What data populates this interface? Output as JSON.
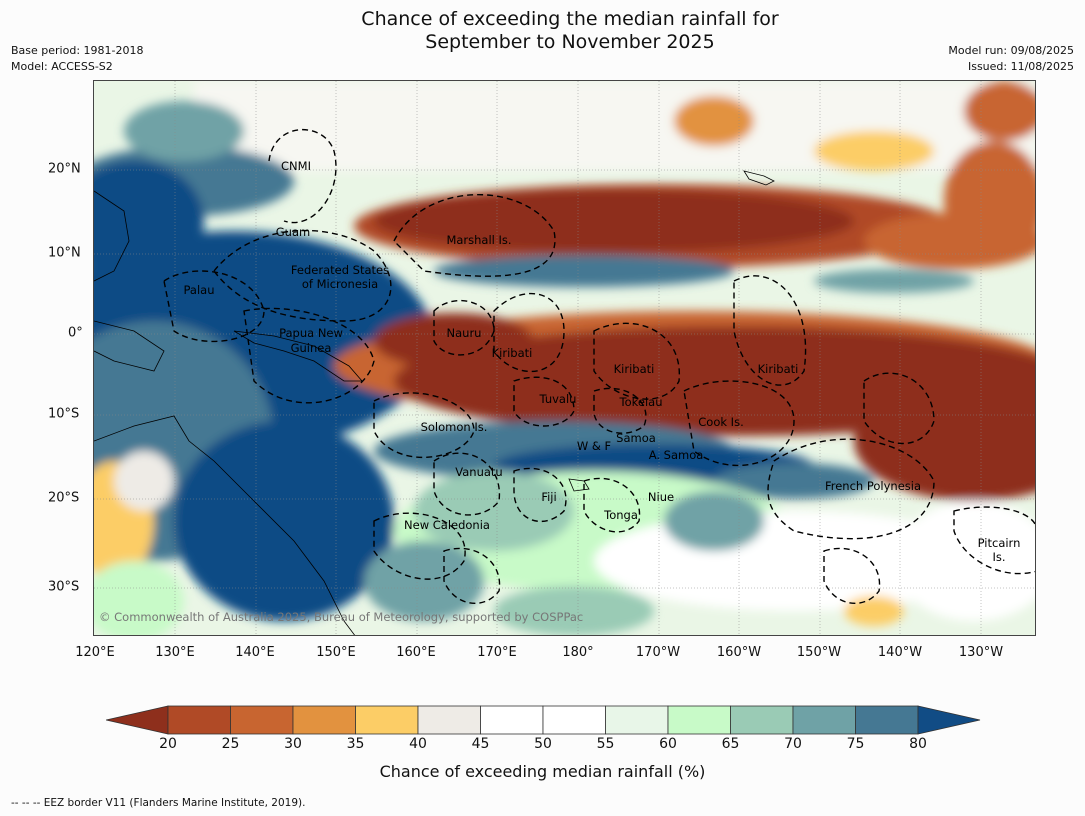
{
  "title_line1": "Chance of exceeding the median rainfall for",
  "title_line2": "September to November 2025",
  "meta_left": {
    "base_period": "Base period: 1981-2018",
    "model": "Model: ACCESS-S2"
  },
  "meta_right": {
    "model_run": "Model run: 09/08/2025",
    "issued": "Issued: 11/08/2025"
  },
  "lon_labels": [
    "120°E",
    "130°E",
    "140°E",
    "150°E",
    "160°E",
    "170°E",
    "180°",
    "170°W",
    "160°W",
    "150°W",
    "140°W",
    "130°W"
  ],
  "lat_labels": [
    "20°N",
    "10°N",
    "0°",
    "10°S",
    "20°S",
    "30°S"
  ],
  "regions": {
    "cnmi": "CNMI",
    "guam": "Guam",
    "marshall": "Marshall Is.",
    "fsm1": "Federated States",
    "fsm2": "of Micronesia",
    "palau": "Palau",
    "png1": "Papua New",
    "png2": "Guinea",
    "nauru": "Nauru",
    "kiribati_w": "Kiribati",
    "kiribati_c": "Kiribati",
    "kiribati_e": "Kiribati",
    "tuvalu": "Tuvalu",
    "tokelau": "Tokelau",
    "cook": "Cook Is.",
    "solomon": "Solomon Is.",
    "wf": "W & F",
    "samoa": "Samoa",
    "asamoa": "A. Samoa",
    "vanuatu": "Vanuatu",
    "fiji": "Fiji",
    "niue": "Niue",
    "tonga": "Tonga",
    "frpoly": "French Polynesia",
    "newcal": "New Caledonia",
    "pitcairn1": "Pitcairn",
    "pitcairn2": "Is."
  },
  "copyright": "© Commonwealth of Australia 2025, Bureau of Meteorology, supported by COSPPac",
  "colorbar": {
    "ticks": [
      "20",
      "25",
      "30",
      "35",
      "40",
      "45",
      "50",
      "55",
      "60",
      "65",
      "70",
      "75",
      "80"
    ],
    "colors": [
      "#8e2f1c",
      "#b04a26",
      "#c86530",
      "#e2923f",
      "#fccd66",
      "#eeebe6",
      "#ffffff",
      "#ffffff",
      "#e8f6e8",
      "#c8fac8",
      "#9acbb5",
      "#6fa2a6",
      "#457893",
      "#114c85"
    ],
    "title": "Chance of exceeding median rainfall (%)"
  },
  "footer": "--  --  -- EEZ border V11 (Flanders Marine Institute, 2019)."
}
